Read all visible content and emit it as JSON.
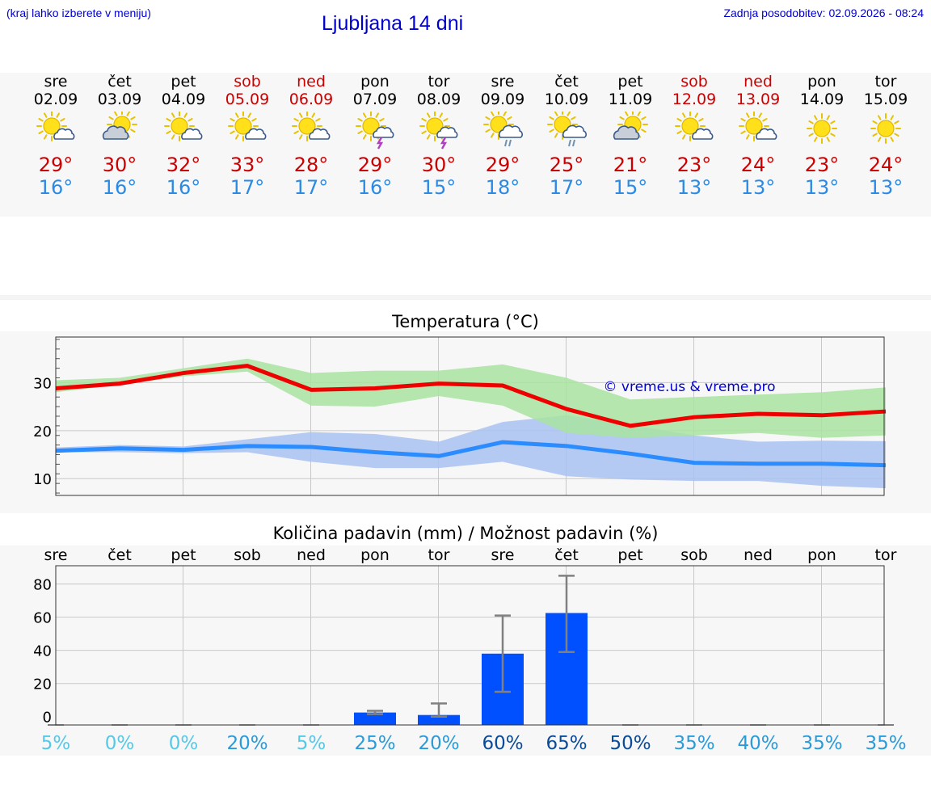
{
  "header": {
    "menu_hint": "(kraj lahko izberete v meniju)",
    "title": "Ljubljana 14 dni",
    "updated": "Zadnja posodobitev: 02.09.2026 - 08:24"
  },
  "days": [
    {
      "name": "sre",
      "date": "02.09",
      "weekend": false,
      "icon": "sun-cloud-icon",
      "max": "29°",
      "min": "16°"
    },
    {
      "name": "čet",
      "date": "03.09",
      "weekend": false,
      "icon": "cloud-sun-icon",
      "max": "30°",
      "min": "16°"
    },
    {
      "name": "pet",
      "date": "04.09",
      "weekend": false,
      "icon": "sun-cloud-icon",
      "max": "32°",
      "min": "16°"
    },
    {
      "name": "sob",
      "date": "05.09",
      "weekend": true,
      "icon": "sun-cloud-icon",
      "max": "33°",
      "min": "17°"
    },
    {
      "name": "ned",
      "date": "06.09",
      "weekend": true,
      "icon": "sun-cloud-icon",
      "max": "28°",
      "min": "17°"
    },
    {
      "name": "pon",
      "date": "07.09",
      "weekend": false,
      "icon": "sun-thunder-icon",
      "max": "29°",
      "min": "16°"
    },
    {
      "name": "tor",
      "date": "08.09",
      "weekend": false,
      "icon": "sun-thunder-icon",
      "max": "30°",
      "min": "15°"
    },
    {
      "name": "sre",
      "date": "09.09",
      "weekend": false,
      "icon": "sun-rain-icon",
      "max": "29°",
      "min": "18°"
    },
    {
      "name": "čet",
      "date": "10.09",
      "weekend": false,
      "icon": "sun-rain-icon",
      "max": "25°",
      "min": "17°"
    },
    {
      "name": "pet",
      "date": "11.09",
      "weekend": false,
      "icon": "cloud-sun-icon",
      "max": "21°",
      "min": "15°"
    },
    {
      "name": "sob",
      "date": "12.09",
      "weekend": true,
      "icon": "sun-cloud-icon",
      "max": "23°",
      "min": "13°"
    },
    {
      "name": "ned",
      "date": "13.09",
      "weekend": true,
      "icon": "sun-cloud-icon",
      "max": "24°",
      "min": "13°"
    },
    {
      "name": "pon",
      "date": "14.09",
      "weekend": false,
      "icon": "sun-icon",
      "max": "23°",
      "min": "13°"
    },
    {
      "name": "tor",
      "date": "15.09",
      "weekend": false,
      "icon": "sun-icon",
      "max": "24°",
      "min": "13°"
    }
  ],
  "colors": {
    "max": "#cc0000",
    "min": "#2a8ae6",
    "max_band": "#a8e3a1",
    "min_band": "#a9c2f2",
    "max_line": "#ee0000",
    "min_line": "#2b8cff",
    "bar": "#0050ff",
    "whisker": "#808080",
    "title": "#0000cc"
  },
  "chart_data": [
    {
      "type": "line",
      "title": "Temperatura (°C)",
      "watermark": "© vreme.us & vreme.pro",
      "x": [
        "sre",
        "čet",
        "pet",
        "sob",
        "ned",
        "pon",
        "tor",
        "sre",
        "čet",
        "pet",
        "sob",
        "ned",
        "pon",
        "tor"
      ],
      "yticks": [
        10,
        20,
        30
      ],
      "ylim": [
        6.5,
        39.5
      ],
      "grid": true,
      "series": [
        {
          "role": "max",
          "values": [
            28.8,
            29.8,
            32,
            33.5,
            28.5,
            28.8,
            29.8,
            29.4,
            24.5,
            21,
            22.8,
            23.5,
            23.2,
            24
          ]
        },
        {
          "role": "max_range_upper",
          "values": [
            30.5,
            31,
            33,
            35,
            32,
            32.5,
            32.5,
            33.8,
            31,
            26.5,
            27,
            27.5,
            28,
            29
          ]
        },
        {
          "role": "max_range_lower",
          "values": [
            28,
            29.5,
            31.3,
            32.3,
            25.2,
            25,
            27.2,
            25.2,
            19.5,
            18.5,
            19,
            19.5,
            18.5,
            19
          ]
        },
        {
          "role": "min",
          "values": [
            15.8,
            16.3,
            16,
            16.8,
            16.6,
            15.5,
            14.7,
            17.6,
            16.8,
            15.2,
            13.3,
            13.1,
            13.1,
            12.8
          ]
        },
        {
          "role": "min_range_upper",
          "values": [
            16.5,
            17,
            16.7,
            18.2,
            19.7,
            19.3,
            17.7,
            21.8,
            23.2,
            21.2,
            19,
            17.7,
            17.9,
            17.8
          ]
        },
        {
          "role": "min_range_lower",
          "values": [
            15.5,
            15.5,
            15.3,
            15.5,
            13.5,
            12.2,
            12.2,
            13.5,
            10.5,
            9.8,
            9.5,
            9.5,
            8.5,
            8
          ]
        }
      ]
    },
    {
      "type": "bar",
      "title": "Količina padavin (mm) / Možnost padavin (%)",
      "categories": [
        "sre",
        "čet",
        "pet",
        "sob",
        "ned",
        "pon",
        "tor",
        "sre",
        "čet",
        "pet",
        "sob",
        "ned",
        "pon",
        "tor"
      ],
      "values": [
        0,
        0,
        0,
        0,
        0,
        2.5,
        1,
        38,
        62.5,
        0,
        0,
        0,
        0,
        0
      ],
      "error_low": [
        0,
        0,
        0,
        0,
        0,
        1.5,
        0,
        15,
        39,
        0,
        0,
        0,
        0,
        0
      ],
      "error_high": [
        0,
        0,
        0,
        0,
        0,
        3.5,
        8,
        61,
        85,
        0,
        0,
        0,
        0,
        0
      ],
      "yticks": [
        0,
        20,
        40,
        60,
        80
      ],
      "ylim": [
        -5,
        91
      ],
      "grid": true,
      "probability": [
        "5%",
        "0%",
        "0%",
        "20%",
        "5%",
        "25%",
        "20%",
        "60%",
        "65%",
        "50%",
        "35%",
        "40%",
        "35%",
        "35%"
      ],
      "probability_colors": [
        "#55c8e8",
        "#55c8e8",
        "#55c8e8",
        "#2a9ad8",
        "#55c8e8",
        "#2a9ad8",
        "#2a9ad8",
        "#0a4a9a",
        "#0a4a9a",
        "#0a4a9a",
        "#2a9ad8",
        "#2a9ad8",
        "#2a9ad8",
        "#2a9ad8"
      ]
    }
  ]
}
